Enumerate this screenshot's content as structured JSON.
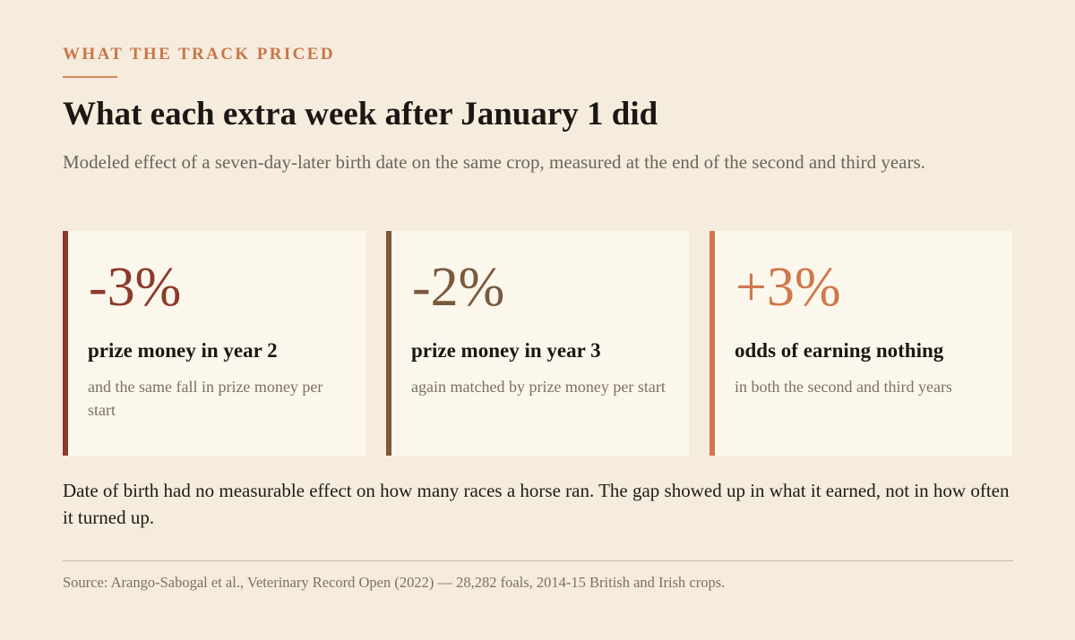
{
  "kicker": "WHAT THE TRACK PRICED",
  "title": "What each extra week after January 1 did",
  "subtitle": "Modeled effect of a seven-day-later birth date on the same crop, measured at the end of the second and third years.",
  "cards": [
    {
      "stat": "-3%",
      "label": "prize money in year 2",
      "note": "and the same fall in prize money per start",
      "accent": "#8b3a2c",
      "stat_color": "#8b3a2c"
    },
    {
      "stat": "-2%",
      "label": "prize money in year 3",
      "note": "again matched by prize money per start",
      "accent": "#7a5a3c",
      "stat_color": "#7a5a3c"
    },
    {
      "stat": "+3%",
      "label": "odds of earning nothing",
      "note": "in both the second and third years",
      "accent": "#d0774c",
      "stat_color": "#d0774c"
    }
  ],
  "body": "Date of birth had no measurable effect on how many races a horse ran. The gap showed up in what it earned, not in how often it turned up.",
  "source": "Source: Arango-Sabogal et al., Veterinary Record Open (2022) — 28,282 foals, 2014-15 British and Irish crops.",
  "colors": {
    "background": "#f6ecdd",
    "card_background": "#fcf7ec",
    "kicker": "#c8754a"
  }
}
